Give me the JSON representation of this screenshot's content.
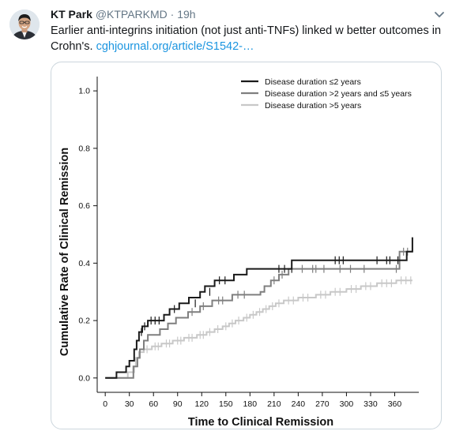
{
  "tweet": {
    "author_name": "KT Park",
    "handle": "@KTPARKMD",
    "separator": "·",
    "time": "19h",
    "text": "Earlier anti-integrins initiation (not just anti-TNFs) linked w better outcomes in Crohn's. ",
    "link": "cghjournal.org/article/S1542-…"
  },
  "icons": {
    "avatar": "avatar-photo",
    "menu": "chevron-down-icon"
  },
  "colors": {
    "name": "#14171a",
    "muted": "#657786",
    "link": "#1b95e0",
    "border": "#ccd6dd",
    "series_short": "#1a1a1a",
    "series_mid": "#7f7f7f",
    "series_long": "#c8c8c8"
  },
  "chart_data": {
    "type": "line",
    "xlabel": "Time to Clinical Remission",
    "ylabel": "Cumulative Rate of Clinical Remission",
    "xlim": [
      -10,
      390
    ],
    "ylim": [
      -0.05,
      1.05
    ],
    "xticks": [
      0,
      30,
      60,
      90,
      120,
      150,
      180,
      210,
      240,
      270,
      300,
      330,
      360
    ],
    "yticks": [
      0.0,
      0.2,
      0.4,
      0.6,
      0.8,
      1.0
    ],
    "ytick_labels": [
      "0.0",
      "0.2",
      "0.4",
      "0.6",
      "0.8",
      "1.0"
    ],
    "legend_position": "top-right",
    "series": [
      {
        "name": "Disease duration ≤2 years",
        "points": [
          [
            0,
            0
          ],
          [
            14,
            0
          ],
          [
            14,
            0.02
          ],
          [
            26,
            0.02
          ],
          [
            26,
            0.04
          ],
          [
            30,
            0.04
          ],
          [
            30,
            0.06
          ],
          [
            36,
            0.06
          ],
          [
            36,
            0.1
          ],
          [
            39,
            0.1
          ],
          [
            39,
            0.13
          ],
          [
            42,
            0.13
          ],
          [
            42,
            0.16
          ],
          [
            46,
            0.16
          ],
          [
            46,
            0.18
          ],
          [
            53,
            0.18
          ],
          [
            53,
            0.2
          ],
          [
            73,
            0.2
          ],
          [
            73,
            0.22
          ],
          [
            80,
            0.22
          ],
          [
            80,
            0.24
          ],
          [
            92,
            0.24
          ],
          [
            92,
            0.26
          ],
          [
            104,
            0.26
          ],
          [
            104,
            0.28
          ],
          [
            118,
            0.28
          ],
          [
            118,
            0.3
          ],
          [
            124,
            0.3
          ],
          [
            124,
            0.32
          ],
          [
            136,
            0.32
          ],
          [
            136,
            0.34
          ],
          [
            160,
            0.34
          ],
          [
            160,
            0.36
          ],
          [
            176,
            0.36
          ],
          [
            176,
            0.38
          ],
          [
            232,
            0.38
          ],
          [
            232,
            0.41
          ],
          [
            375,
            0.41
          ],
          [
            375,
            0.44
          ],
          [
            382,
            0.44
          ],
          [
            382,
            0.49
          ]
        ],
        "censored": [
          [
            45,
            0.16
          ],
          [
            49,
            0.18
          ],
          [
            57,
            0.2
          ],
          [
            62,
            0.2
          ],
          [
            67,
            0.2
          ],
          [
            86,
            0.24
          ],
          [
            112,
            0.26
          ],
          [
            130,
            0.3
          ],
          [
            142,
            0.34
          ],
          [
            149,
            0.34
          ],
          [
            216,
            0.38
          ],
          [
            223,
            0.38
          ],
          [
            232,
            0.38
          ],
          [
            286,
            0.41
          ],
          [
            291,
            0.41
          ],
          [
            296,
            0.41
          ],
          [
            338,
            0.41
          ],
          [
            350,
            0.41
          ],
          [
            354,
            0.41
          ],
          [
            364,
            0.41
          ]
        ]
      },
      {
        "name": "Disease duration >2 years and ≤5 years",
        "points": [
          [
            0,
            0
          ],
          [
            35,
            0
          ],
          [
            35,
            0.04
          ],
          [
            40,
            0.04
          ],
          [
            40,
            0.07
          ],
          [
            43,
            0.07
          ],
          [
            43,
            0.1
          ],
          [
            48,
            0.1
          ],
          [
            48,
            0.13
          ],
          [
            53,
            0.13
          ],
          [
            53,
            0.15
          ],
          [
            68,
            0.15
          ],
          [
            68,
            0.17
          ],
          [
            78,
            0.17
          ],
          [
            78,
            0.19
          ],
          [
            88,
            0.19
          ],
          [
            88,
            0.21
          ],
          [
            103,
            0.21
          ],
          [
            103,
            0.23
          ],
          [
            118,
            0.23
          ],
          [
            118,
            0.25
          ],
          [
            133,
            0.25
          ],
          [
            133,
            0.27
          ],
          [
            158,
            0.27
          ],
          [
            158,
            0.29
          ],
          [
            193,
            0.29
          ],
          [
            193,
            0.3
          ],
          [
            198,
            0.3
          ],
          [
            198,
            0.32
          ],
          [
            206,
            0.32
          ],
          [
            206,
            0.34
          ],
          [
            216,
            0.34
          ],
          [
            216,
            0.36
          ],
          [
            228,
            0.36
          ],
          [
            228,
            0.38
          ],
          [
            366,
            0.38
          ],
          [
            366,
            0.44
          ],
          [
            382,
            0.44
          ]
        ],
        "censored": [
          [
            108,
            0.23
          ],
          [
            122,
            0.25
          ],
          [
            141,
            0.27
          ],
          [
            146,
            0.27
          ],
          [
            165,
            0.29
          ],
          [
            173,
            0.29
          ],
          [
            210,
            0.34
          ],
          [
            220,
            0.36
          ],
          [
            245,
            0.38
          ],
          [
            258,
            0.38
          ],
          [
            262,
            0.38
          ],
          [
            272,
            0.38
          ],
          [
            292,
            0.38
          ],
          [
            305,
            0.38
          ],
          [
            322,
            0.38
          ],
          [
            362,
            0.38
          ],
          [
            371,
            0.44
          ],
          [
            376,
            0.44
          ]
        ]
      },
      {
        "name": "Disease duration >5 years",
        "points": [
          [
            0,
            0
          ],
          [
            28,
            0
          ],
          [
            28,
            0.02
          ],
          [
            36,
            0.02
          ],
          [
            36,
            0.04
          ],
          [
            38,
            0.04
          ],
          [
            38,
            0.07
          ],
          [
            42,
            0.07
          ],
          [
            42,
            0.09
          ],
          [
            48,
            0.09
          ],
          [
            48,
            0.1
          ],
          [
            58,
            0.1
          ],
          [
            58,
            0.11
          ],
          [
            70,
            0.11
          ],
          [
            70,
            0.12
          ],
          [
            84,
            0.12
          ],
          [
            84,
            0.13
          ],
          [
            98,
            0.13
          ],
          [
            98,
            0.14
          ],
          [
            114,
            0.14
          ],
          [
            114,
            0.15
          ],
          [
            126,
            0.15
          ],
          [
            126,
            0.16
          ],
          [
            136,
            0.16
          ],
          [
            136,
            0.17
          ],
          [
            146,
            0.17
          ],
          [
            146,
            0.18
          ],
          [
            154,
            0.18
          ],
          [
            154,
            0.19
          ],
          [
            162,
            0.19
          ],
          [
            162,
            0.2
          ],
          [
            172,
            0.2
          ],
          [
            172,
            0.21
          ],
          [
            180,
            0.21
          ],
          [
            180,
            0.22
          ],
          [
            188,
            0.22
          ],
          [
            188,
            0.23
          ],
          [
            196,
            0.23
          ],
          [
            196,
            0.24
          ],
          [
            204,
            0.24
          ],
          [
            204,
            0.25
          ],
          [
            212,
            0.25
          ],
          [
            212,
            0.26
          ],
          [
            222,
            0.26
          ],
          [
            222,
            0.27
          ],
          [
            240,
            0.27
          ],
          [
            240,
            0.28
          ],
          [
            262,
            0.28
          ],
          [
            262,
            0.29
          ],
          [
            280,
            0.29
          ],
          [
            280,
            0.3
          ],
          [
            300,
            0.3
          ],
          [
            300,
            0.31
          ],
          [
            318,
            0.31
          ],
          [
            318,
            0.32
          ],
          [
            338,
            0.32
          ],
          [
            338,
            0.33
          ],
          [
            362,
            0.33
          ],
          [
            362,
            0.34
          ],
          [
            382,
            0.34
          ]
        ],
        "censored": [
          [
            52,
            0.1
          ],
          [
            62,
            0.11
          ],
          [
            66,
            0.11
          ],
          [
            76,
            0.12
          ],
          [
            80,
            0.12
          ],
          [
            90,
            0.13
          ],
          [
            94,
            0.13
          ],
          [
            104,
            0.14
          ],
          [
            108,
            0.14
          ],
          [
            118,
            0.15
          ],
          [
            122,
            0.15
          ],
          [
            130,
            0.16
          ],
          [
            140,
            0.17
          ],
          [
            150,
            0.18
          ],
          [
            158,
            0.19
          ],
          [
            166,
            0.2
          ],
          [
            176,
            0.21
          ],
          [
            184,
            0.22
          ],
          [
            192,
            0.23
          ],
          [
            200,
            0.24
          ],
          [
            208,
            0.25
          ],
          [
            216,
            0.26
          ],
          [
            228,
            0.27
          ],
          [
            234,
            0.27
          ],
          [
            246,
            0.28
          ],
          [
            252,
            0.28
          ],
          [
            268,
            0.29
          ],
          [
            274,
            0.29
          ],
          [
            286,
            0.3
          ],
          [
            292,
            0.3
          ],
          [
            306,
            0.31
          ],
          [
            312,
            0.31
          ],
          [
            324,
            0.32
          ],
          [
            330,
            0.32
          ],
          [
            344,
            0.33
          ],
          [
            350,
            0.33
          ],
          [
            356,
            0.33
          ],
          [
            368,
            0.34
          ],
          [
            374,
            0.34
          ],
          [
            380,
            0.34
          ]
        ]
      }
    ]
  }
}
